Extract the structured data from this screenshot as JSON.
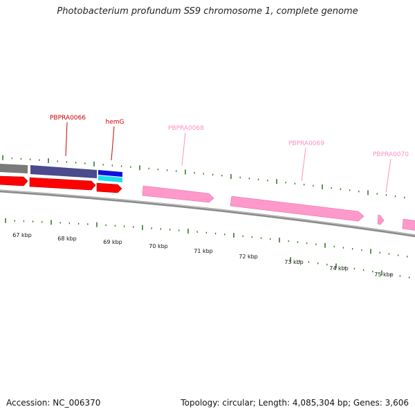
{
  "title": "Photobacterium profundum SS9 chromosome 1, complete genome",
  "footer": {
    "accession": "Accession: NC_006370",
    "summary": "Topology: circular; Length: 4,085,304 bp; Genes: 3,606"
  },
  "colors": {
    "backbone": "#8a8a8a",
    "tick": "#2e7d1e",
    "feature_red": "#ff0000",
    "feature_purple": "#4a4a8c",
    "feature_blue": "#1010dd",
    "feature_cyan": "#22ddee",
    "feature_pink": "#ff99cc",
    "label_dark": "#cc0000",
    "label_light": "#ff8fc4"
  },
  "kbp_labels": [
    "67 kbp",
    "68 kbp",
    "69 kbp",
    "70 kbp",
    "71 kbp",
    "72 kbp",
    "73 kbp",
    "74 kbp",
    "75 kbp"
  ],
  "gene_labels": [
    {
      "name": "PBPRA0066",
      "style": "dark"
    },
    {
      "name": "hemG",
      "style": "dark"
    },
    {
      "name": "PBPRA0068",
      "style": "light"
    },
    {
      "name": "PBPRA0069",
      "style": "light"
    },
    {
      "name": "PBPRA0070",
      "style": "light"
    }
  ]
}
